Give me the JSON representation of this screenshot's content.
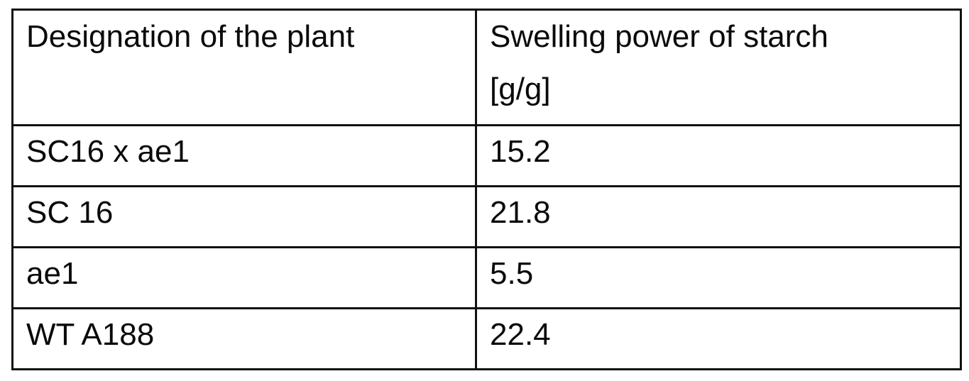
{
  "table": {
    "headers": [
      {
        "line1": "Designation of the plant",
        "line2": ""
      },
      {
        "line1": "Swelling power of starch",
        "line2": "[g/g]"
      }
    ],
    "rows": [
      {
        "plant": "SC16 x ae1",
        "swelling_power": "15.2"
      },
      {
        "plant": "SC 16",
        "swelling_power": "21.8"
      },
      {
        "plant": "ae1",
        "swelling_power": "5.5"
      },
      {
        "plant": "WT A188",
        "swelling_power": "22.4"
      }
    ]
  }
}
